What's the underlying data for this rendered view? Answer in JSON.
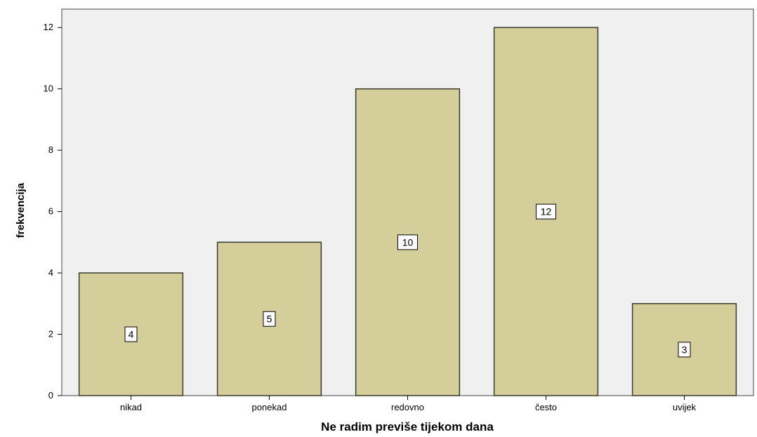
{
  "chart_data": {
    "type": "bar",
    "categories": [
      "nikad",
      "ponekad",
      "redovno",
      "često",
      "uvijek"
    ],
    "values": [
      4,
      5,
      10,
      12,
      3
    ],
    "data_labels": [
      "4",
      "5",
      "10",
      "12",
      "3"
    ],
    "title": "",
    "xlabel": "Ne radim previše tijekom dana",
    "ylabel": "frekvencija",
    "ylim": [
      0,
      12.6
    ],
    "yticks": [
      0,
      2,
      4,
      6,
      8,
      10,
      12
    ],
    "ytick_labels": [
      "0",
      "2",
      "4",
      "6",
      "8",
      "10",
      "12"
    ],
    "grid": false,
    "legend": "none",
    "colors": {
      "bar_fill": "#d3ce9a",
      "bar_stroke": "#3a3a2a",
      "plot_background": "#f0f0f0",
      "label_box": "#ffffff"
    }
  }
}
